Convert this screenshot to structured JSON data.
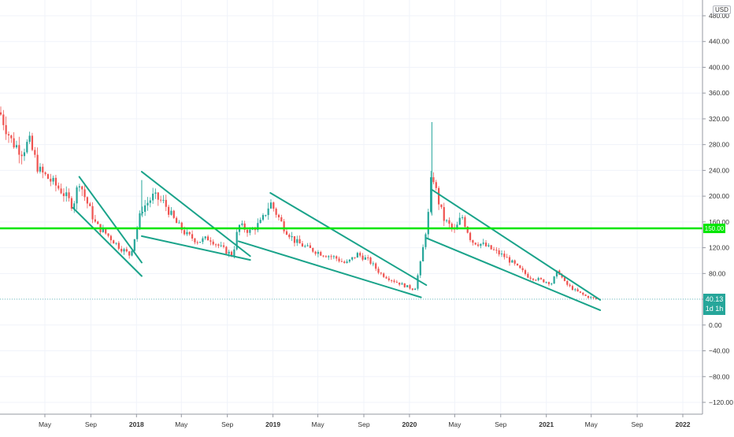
{
  "symbol_currency": "USD",
  "price_badge": {
    "value": "40.13",
    "countdown": "1d 1h",
    "color": "#26a69a"
  },
  "horizontal_level": {
    "value": 150,
    "label": "150.00",
    "color": "#00e600"
  },
  "colors": {
    "up": "#26a69a",
    "down": "#ef5350",
    "trendline": "#1aa38a",
    "grid": "#f0f3fa",
    "axis_text": "#333333"
  },
  "x_axis_labels": [
    "May",
    "Sep",
    "2018",
    "May",
    "Sep",
    "2019",
    "May",
    "Sep",
    "2020",
    "May",
    "Sep",
    "2021",
    "May",
    "Sep",
    "2022"
  ],
  "chart_data": {
    "type": "candlestick",
    "y_axis": {
      "min": -140,
      "max": 490,
      "ticks": [
        480,
        440,
        400,
        360,
        320,
        280,
        240,
        200,
        160,
        120,
        80,
        40,
        0,
        -40,
        -80,
        -120
      ],
      "tick_labels": [
        "480.00",
        "440.00",
        "400.00",
        "360.00",
        "320.00",
        "280.00",
        "240.00",
        "200.00",
        "160.00",
        "120.00",
        "80.00",
        "40.00",
        "0.00",
        "−40.00",
        "−80.00",
        "−120.00"
      ]
    },
    "x_axis": {
      "start": "2017-01",
      "end": "2022-02",
      "months": [
        {
          "date": "2017-05",
          "label": "May"
        },
        {
          "date": "2017-09",
          "label": "Sep"
        },
        {
          "date": "2018-01",
          "label": "2018"
        },
        {
          "date": "2018-05",
          "label": "May"
        },
        {
          "date": "2018-09",
          "label": "Sep"
        },
        {
          "date": "2019-01",
          "label": "2019"
        },
        {
          "date": "2019-05",
          "label": "May"
        },
        {
          "date": "2019-09",
          "label": "Sep"
        },
        {
          "date": "2020-01",
          "label": "2020"
        },
        {
          "date": "2020-05",
          "label": "May"
        },
        {
          "date": "2020-09",
          "label": "Sep"
        },
        {
          "date": "2021-01",
          "label": "2021"
        },
        {
          "date": "2021-05",
          "label": "May"
        },
        {
          "date": "2021-09",
          "label": "Sep"
        },
        {
          "date": "2022-01",
          "label": "2022"
        }
      ]
    },
    "price_path": [
      {
        "date": "2017-01-01",
        "close": 330
      },
      {
        "date": "2017-02-01",
        "close": 285
      },
      {
        "date": "2017-03-01",
        "close": 270
      },
      {
        "date": "2017-03-20",
        "close": 285
      },
      {
        "date": "2017-04-15",
        "close": 240
      },
      {
        "date": "2017-05-15",
        "close": 225
      },
      {
        "date": "2017-06-15",
        "close": 208
      },
      {
        "date": "2017-07-15",
        "close": 185
      },
      {
        "date": "2017-08-01",
        "close": 225
      },
      {
        "date": "2017-08-15",
        "close": 200
      },
      {
        "date": "2017-09-15",
        "close": 155
      },
      {
        "date": "2017-10-15",
        "close": 140
      },
      {
        "date": "2017-11-15",
        "close": 122
      },
      {
        "date": "2017-12-15",
        "close": 108
      },
      {
        "date": "2018-01-15",
        "close": 180
      },
      {
        "date": "2018-02-15",
        "close": 200
      },
      {
        "date": "2018-03-15",
        "close": 190
      },
      {
        "date": "2018-04-15",
        "close": 160
      },
      {
        "date": "2018-05-15",
        "close": 140
      },
      {
        "date": "2018-06-15",
        "close": 130
      },
      {
        "date": "2018-07-15",
        "close": 135
      },
      {
        "date": "2018-08-15",
        "close": 120
      },
      {
        "date": "2018-09-15",
        "close": 108
      },
      {
        "date": "2018-10-01",
        "close": 155
      },
      {
        "date": "2018-11-01",
        "close": 145
      },
      {
        "date": "2018-12-01",
        "close": 160
      },
      {
        "date": "2018-12-25",
        "close": 190
      },
      {
        "date": "2019-02-01",
        "close": 150
      },
      {
        "date": "2019-03-01",
        "close": 130
      },
      {
        "date": "2019-04-01",
        "close": 120
      },
      {
        "date": "2019-05-15",
        "close": 110
      },
      {
        "date": "2019-06-15",
        "close": 105
      },
      {
        "date": "2019-07-15",
        "close": 95
      },
      {
        "date": "2019-08-15",
        "close": 110
      },
      {
        "date": "2019-09-15",
        "close": 100
      },
      {
        "date": "2019-10-15",
        "close": 80
      },
      {
        "date": "2019-11-15",
        "close": 70
      },
      {
        "date": "2019-12-15",
        "close": 62
      },
      {
        "date": "2020-01-15",
        "close": 55
      },
      {
        "date": "2020-02-01",
        "close": 100
      },
      {
        "date": "2020-02-20",
        "close": 170
      },
      {
        "date": "2020-03-01",
        "close": 240
      },
      {
        "date": "2020-03-15",
        "close": 200
      },
      {
        "date": "2020-04-01",
        "close": 165
      },
      {
        "date": "2020-05-01",
        "close": 145
      },
      {
        "date": "2020-05-20",
        "close": 170
      },
      {
        "date": "2020-06-15",
        "close": 130
      },
      {
        "date": "2020-07-15",
        "close": 125
      },
      {
        "date": "2020-08-15",
        "close": 115
      },
      {
        "date": "2020-09-15",
        "close": 105
      },
      {
        "date": "2020-10-15",
        "close": 90
      },
      {
        "date": "2020-11-15",
        "close": 75
      },
      {
        "date": "2020-12-15",
        "close": 70
      },
      {
        "date": "2021-01-15",
        "close": 65
      },
      {
        "date": "2021-02-01",
        "close": 85
      },
      {
        "date": "2021-02-20",
        "close": 65
      },
      {
        "date": "2021-03-15",
        "close": 55
      },
      {
        "date": "2021-04-15",
        "close": 45
      },
      {
        "date": "2021-05-15",
        "close": 40.13
      }
    ],
    "spikes": [
      {
        "date": "2020-03-01",
        "high": 315,
        "low": 170
      },
      {
        "date": "2018-01-15",
        "high": 225,
        "low": 170
      }
    ],
    "trendlines": [
      {
        "from": {
          "date": "2017-08-01",
          "value": 230
        },
        "to": {
          "date": "2018-01-15",
          "value": 97
        }
      },
      {
        "from": {
          "date": "2017-07-15",
          "value": 182
        },
        "to": {
          "date": "2018-01-15",
          "value": 76
        }
      },
      {
        "from": {
          "date": "2018-01-15",
          "value": 238
        },
        "to": {
          "date": "2018-11-01",
          "value": 107
        }
      },
      {
        "from": {
          "date": "2018-01-15",
          "value": 138
        },
        "to": {
          "date": "2018-11-01",
          "value": 101
        }
      },
      {
        "from": {
          "date": "2018-12-25",
          "value": 205
        },
        "to": {
          "date": "2020-02-15",
          "value": 62
        }
      },
      {
        "from": {
          "date": "2018-10-01",
          "value": 130
        },
        "to": {
          "date": "2020-02-01",
          "value": 43
        }
      },
      {
        "from": {
          "date": "2020-03-01",
          "value": 210
        },
        "to": {
          "date": "2021-05-25",
          "value": 39
        }
      },
      {
        "from": {
          "date": "2020-02-15",
          "value": 135
        },
        "to": {
          "date": "2021-05-25",
          "value": 23
        }
      }
    ]
  }
}
